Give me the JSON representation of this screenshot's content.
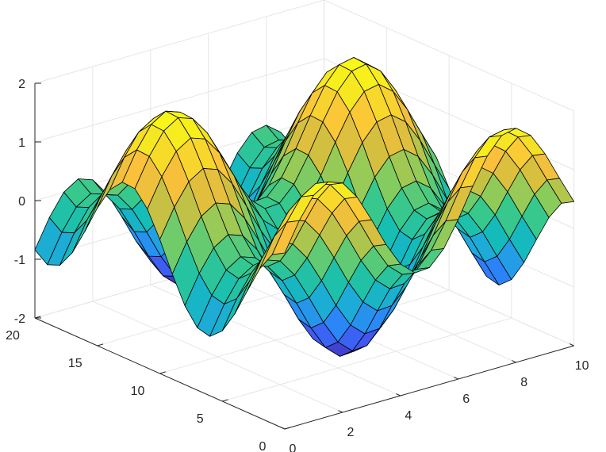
{
  "chart_data": {
    "type": "surface",
    "title": "",
    "xlabel": "",
    "ylabel": "",
    "zlabel": "",
    "grid": true,
    "colormap": "parula",
    "colormap_colors": [
      "#3e26a8",
      "#4353f2",
      "#2c84f8",
      "#1fa8de",
      "#13bdb6",
      "#37c88d",
      "#8acc5c",
      "#d1bf3f",
      "#fbc03b",
      "#f5e523",
      "#f9fb15"
    ],
    "xlim": [
      0,
      10
    ],
    "ylim": [
      0,
      20
    ],
    "zlim": [
      -2,
      2
    ],
    "x": [
      0,
      0.5,
      1,
      1.5,
      2,
      2.5,
      3,
      3.5,
      4,
      4.5,
      5,
      5.5,
      6,
      6.5,
      7,
      7.5,
      8,
      8.5,
      9,
      9.5,
      10
    ],
    "y": [
      0,
      1,
      2,
      3,
      4,
      5,
      6,
      7,
      8,
      9,
      10,
      11,
      12,
      13,
      14,
      15,
      16,
      17,
      18,
      19,
      20
    ],
    "z_formula": "z = sin(x) + cos(y / 2)",
    "x_ticks": [
      "0",
      "2",
      "4",
      "6",
      "8",
      "10"
    ],
    "y_ticks": [
      "0",
      "5",
      "10",
      "15",
      "20"
    ],
    "z_ticks": [
      "-2",
      "-1",
      "0",
      "1",
      "2"
    ]
  }
}
